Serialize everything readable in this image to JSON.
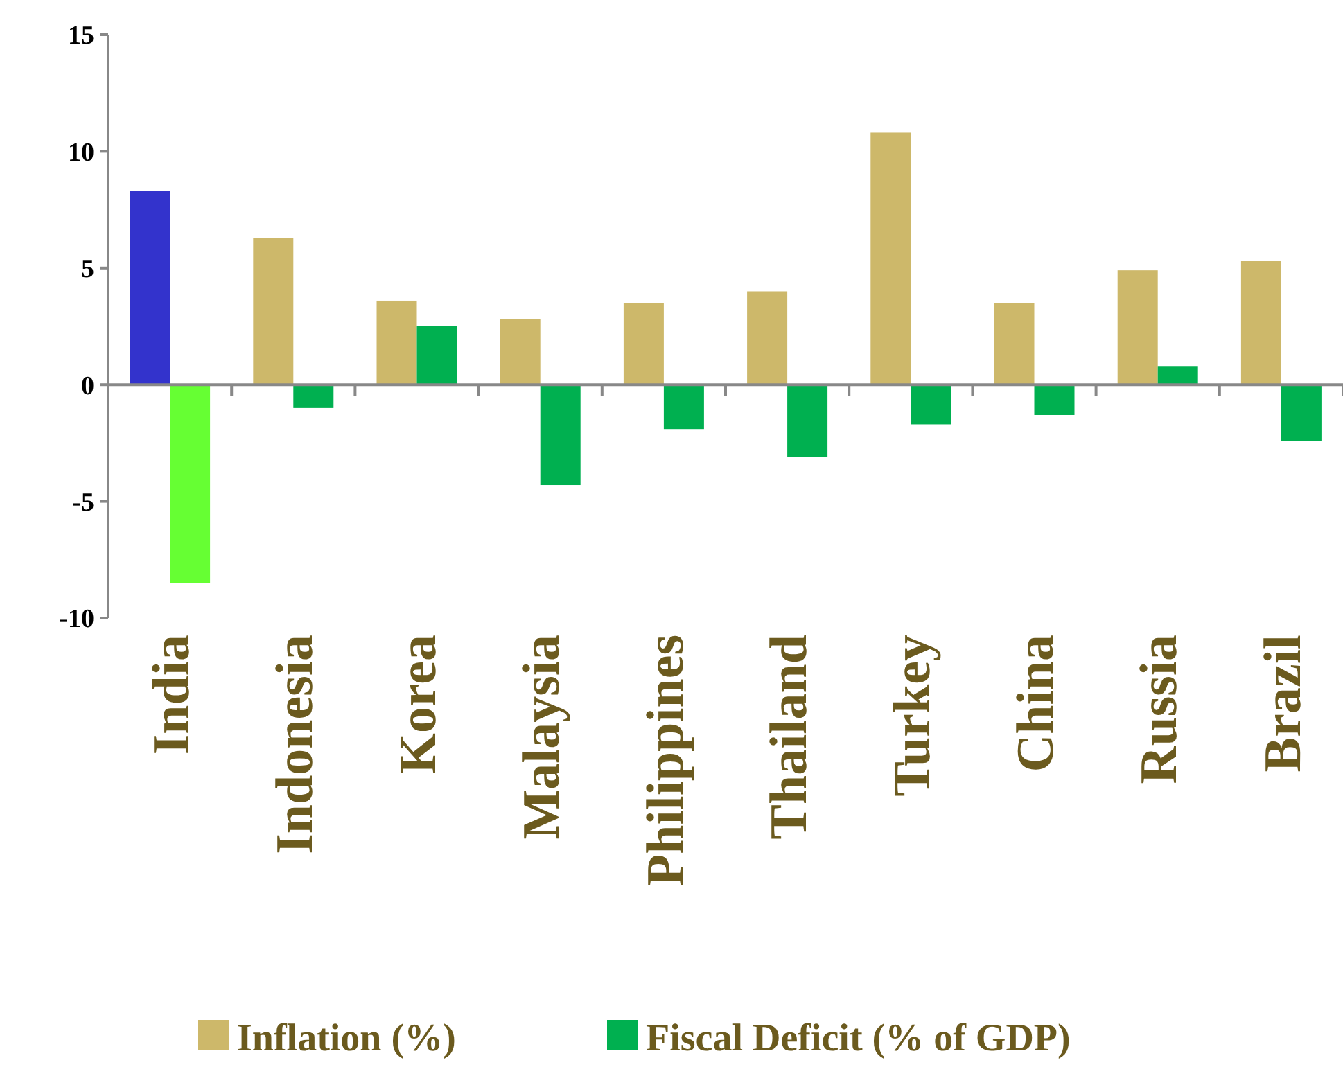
{
  "chart_data": {
    "type": "bar",
    "categories": [
      "India",
      "Indonesia",
      "Korea",
      "Malaysia",
      "Philippines",
      "Thailand",
      "Turkey",
      "China",
      "Russia",
      "Brazil"
    ],
    "series": [
      {
        "name": "Inflation (%)",
        "color": "#cdb86a",
        "colors": [
          "#3333cc",
          "#cdb86a",
          "#cdb86a",
          "#cdb86a",
          "#cdb86a",
          "#cdb86a",
          "#cdb86a",
          "#cdb86a",
          "#cdb86a",
          "#cdb86a"
        ],
        "values": [
          8.3,
          6.3,
          3.6,
          2.8,
          3.5,
          4.0,
          10.8,
          3.5,
          4.9,
          5.3
        ]
      },
      {
        "name": "Fiscal Deficit (% of GDP)",
        "color": "#00b050",
        "colors": [
          "#66ff33",
          "#00b050",
          "#00b050",
          "#00b050",
          "#00b050",
          "#00b050",
          "#00b050",
          "#00b050",
          "#00b050",
          "#00b050"
        ],
        "values": [
          -8.5,
          -1.0,
          2.5,
          -4.3,
          -1.9,
          -3.1,
          -1.7,
          -1.3,
          0.8,
          -2.4
        ]
      }
    ],
    "ylim": [
      -10,
      15
    ],
    "yticks": [
      {
        "value": -10,
        "label": "-10"
      },
      {
        "value": -5,
        "label": "-5"
      },
      0,
      5,
      10,
      15
    ],
    "legend": "bottom"
  }
}
